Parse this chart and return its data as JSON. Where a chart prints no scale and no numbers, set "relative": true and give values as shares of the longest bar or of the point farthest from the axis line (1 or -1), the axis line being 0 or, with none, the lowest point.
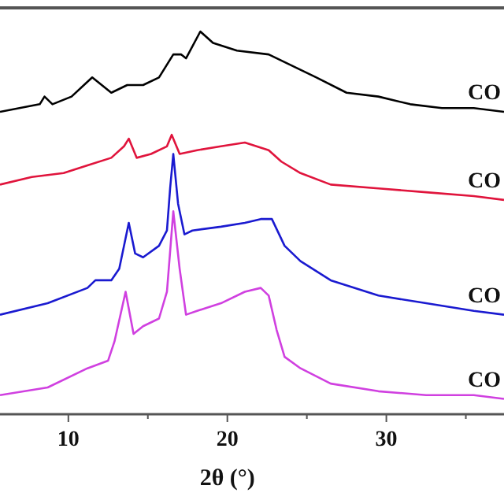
{
  "chart_data": {
    "type": "line",
    "relative": true,
    "xlabel": "2θ (°)",
    "xlim": [
      5.7,
      37.4
    ],
    "xticks": [
      10,
      {
        "value": 15,
        "label": null
      },
      20,
      {
        "value": 25,
        "label": null
      },
      30,
      {
        "value": 35,
        "label": null
      }
    ],
    "grid": false,
    "marker": "none",
    "line_style": "solid",
    "series": [
      {
        "name": "CO",
        "color": "#000000",
        "x": [
          5.7,
          8.2,
          8.5,
          9.0,
          10.2,
          11.5,
          12.7,
          13.7,
          14.7,
          15.7,
          16.6,
          17.1,
          17.4,
          18.3,
          19.1,
          20.6,
          22.6,
          23.6,
          25.6,
          27.5,
          29.5,
          31.5,
          33.5,
          35.5,
          37.4
        ],
        "values": [
          0.79,
          0.81,
          0.83,
          0.81,
          0.83,
          0.88,
          0.84,
          0.86,
          0.86,
          0.88,
          0.94,
          0.94,
          0.93,
          1,
          0.97,
          0.95,
          0.94,
          0.92,
          0.88,
          0.84,
          0.83,
          0.81,
          0.8,
          0.8,
          0.79
        ]
      },
      {
        "name": "CO",
        "color": "#e0143c",
        "x": [
          5.7,
          7.7,
          9.7,
          11.2,
          12.7,
          13.5,
          13.8,
          14.3,
          15.2,
          16.2,
          16.5,
          17.0,
          18.1,
          19.6,
          21.1,
          22.6,
          23.4,
          24.6,
          26.5,
          29.5,
          32.5,
          35.5,
          37.4
        ],
        "values": [
          0.6,
          0.62,
          0.63,
          0.65,
          0.67,
          0.7,
          0.72,
          0.67,
          0.68,
          0.7,
          0.73,
          0.68,
          0.69,
          0.7,
          0.71,
          0.69,
          0.66,
          0.63,
          0.6,
          0.59,
          0.58,
          0.57,
          0.56
        ]
      },
      {
        "name": "CO",
        "color": "#1a1ad0",
        "x": [
          5.7,
          8.7,
          11.2,
          11.7,
          12.7,
          13.2,
          13.8,
          14.2,
          14.7,
          15.7,
          16.2,
          16.4,
          16.6,
          16.9,
          17.3,
          17.8,
          19.6,
          21.1,
          22.1,
          22.8,
          23.6,
          24.6,
          26.5,
          29.5,
          32.5,
          35.5,
          37.4
        ],
        "values": [
          0.26,
          0.29,
          0.33,
          0.35,
          0.35,
          0.38,
          0.5,
          0.42,
          0.41,
          0.44,
          0.48,
          0.59,
          0.68,
          0.55,
          0.47,
          0.48,
          0.49,
          0.5,
          0.51,
          0.51,
          0.44,
          0.4,
          0.35,
          0.31,
          0.29,
          0.27,
          0.26
        ]
      },
      {
        "name": "CO",
        "color": "#d040e0",
        "x": [
          5.7,
          8.7,
          11.2,
          12.5,
          12.9,
          13.6,
          14.1,
          14.7,
          15.7,
          16.2,
          16.6,
          17.0,
          17.4,
          18.1,
          19.6,
          21.1,
          22.1,
          22.6,
          23.1,
          23.6,
          24.6,
          26.5,
          29.5,
          32.5,
          35.5,
          37.4
        ],
        "values": [
          0.05,
          0.07,
          0.12,
          0.14,
          0.19,
          0.32,
          0.21,
          0.23,
          0.25,
          0.32,
          0.53,
          0.38,
          0.26,
          0.27,
          0.29,
          0.32,
          0.33,
          0.31,
          0.22,
          0.15,
          0.12,
          0.08,
          0.06,
          0.05,
          0.05,
          0.04
        ]
      }
    ]
  }
}
